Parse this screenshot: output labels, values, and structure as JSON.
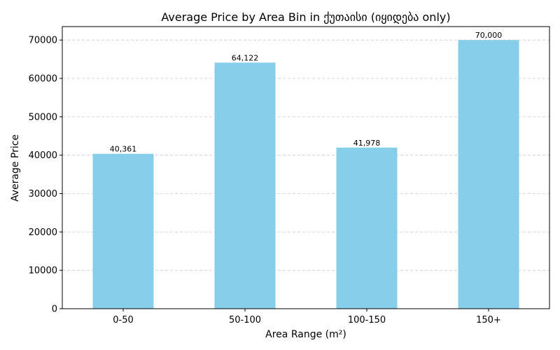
{
  "chart_data": {
    "type": "bar",
    "title": "Average Price by Area Bin in ქუთაისი (იყიდება only)",
    "xlabel": "Area Range (m²)",
    "ylabel": "Average Price",
    "categories": [
      "0-50",
      "50-100",
      "100-150",
      "150+"
    ],
    "values": [
      40361,
      64122,
      41978,
      70000
    ],
    "value_labels": [
      "40,361",
      "64,122",
      "41,978",
      "70,000"
    ],
    "ylim": [
      0,
      73500
    ],
    "yticks": [
      0,
      10000,
      20000,
      30000,
      40000,
      50000,
      60000,
      70000
    ],
    "ytick_labels": [
      "0",
      "10000",
      "20000",
      "30000",
      "40000",
      "50000",
      "60000",
      "70000"
    ],
    "grid": "y-dashed",
    "bar_color": "#87CEEB"
  }
}
